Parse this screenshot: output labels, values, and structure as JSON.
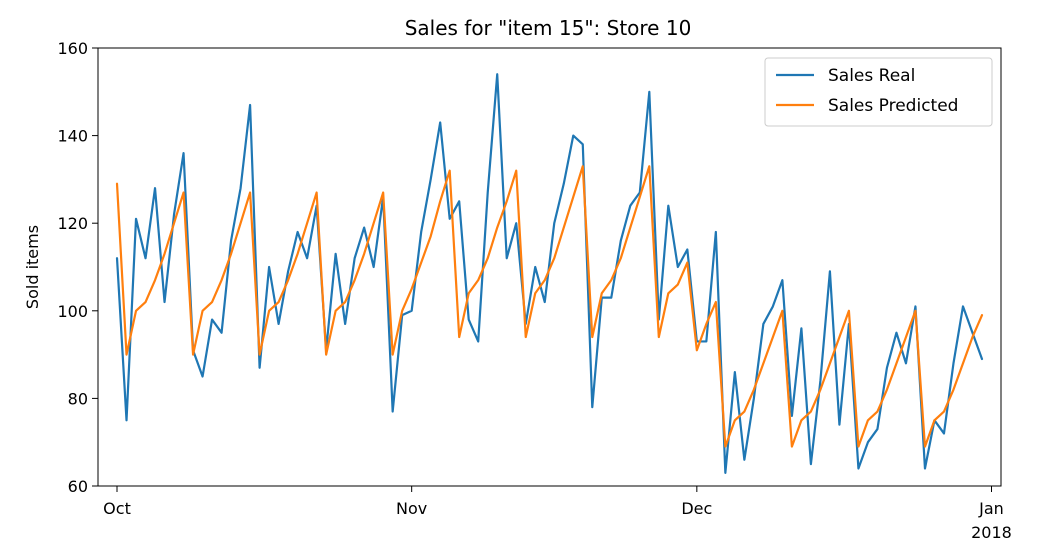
{
  "chart_data": {
    "type": "line",
    "title": "Sales for \"item 15\": Store 10",
    "xlabel": "",
    "ylabel": "Sold items",
    "ylim": [
      60,
      160
    ],
    "xlim": [
      "2017-09-29",
      "2018-01-02"
    ],
    "grid": false,
    "legend_position": "top-right",
    "x_ticks": [
      {
        "date": "2017-10-01",
        "label": "Oct",
        "sublabel": ""
      },
      {
        "date": "2017-11-01",
        "label": "Nov",
        "sublabel": ""
      },
      {
        "date": "2017-12-01",
        "label": "Dec",
        "sublabel": ""
      },
      {
        "date": "2018-01-01",
        "label": "Jan",
        "sublabel": "2018"
      }
    ],
    "y_ticks": [
      60,
      80,
      100,
      120,
      140,
      160
    ],
    "x_start": "2017-10-01",
    "series": [
      {
        "name": "Sales Real",
        "color": "#1f77b4",
        "values": [
          112,
          75,
          121,
          112,
          128,
          102,
          122,
          136,
          91,
          85,
          98,
          95,
          116,
          128,
          147,
          87,
          110,
          97,
          109,
          118,
          112,
          124,
          91,
          113,
          97,
          112,
          119,
          110,
          126,
          77,
          99,
          100,
          118,
          130,
          143,
          121,
          125,
          98,
          93,
          127,
          154,
          112,
          120,
          97,
          110,
          102,
          120,
          129,
          140,
          138,
          78,
          103,
          103,
          116,
          124,
          127,
          150,
          98,
          124,
          110,
          114,
          93,
          93,
          118,
          63,
          86,
          66,
          80,
          97,
          101,
          107,
          76,
          96,
          65,
          84,
          109,
          74,
          97,
          64,
          70,
          73,
          87,
          95,
          88,
          101,
          64,
          75,
          72,
          88,
          101,
          95,
          89
        ]
      },
      {
        "name": "Sales Predicted",
        "color": "#ff7f0e",
        "values": [
          129,
          90,
          100,
          102,
          107,
          113,
          120,
          127,
          90,
          100,
          102,
          107,
          113,
          120,
          127,
          90,
          100,
          102,
          107,
          113,
          120,
          127,
          90,
          100,
          102,
          107,
          113,
          120,
          127,
          90,
          100,
          105,
          111,
          117,
          125,
          132,
          94,
          104,
          107,
          112,
          119,
          125,
          132,
          94,
          104,
          107,
          112,
          119,
          126,
          133,
          94,
          104,
          107,
          112,
          119,
          126,
          133,
          94,
          104,
          106,
          111,
          91,
          97,
          102,
          69,
          75,
          77,
          82,
          88,
          94,
          100,
          69,
          75,
          77,
          82,
          88,
          94,
          100,
          69,
          75,
          77,
          82,
          88,
          94,
          100,
          69,
          75,
          77,
          82,
          88,
          94,
          99
        ]
      }
    ]
  }
}
